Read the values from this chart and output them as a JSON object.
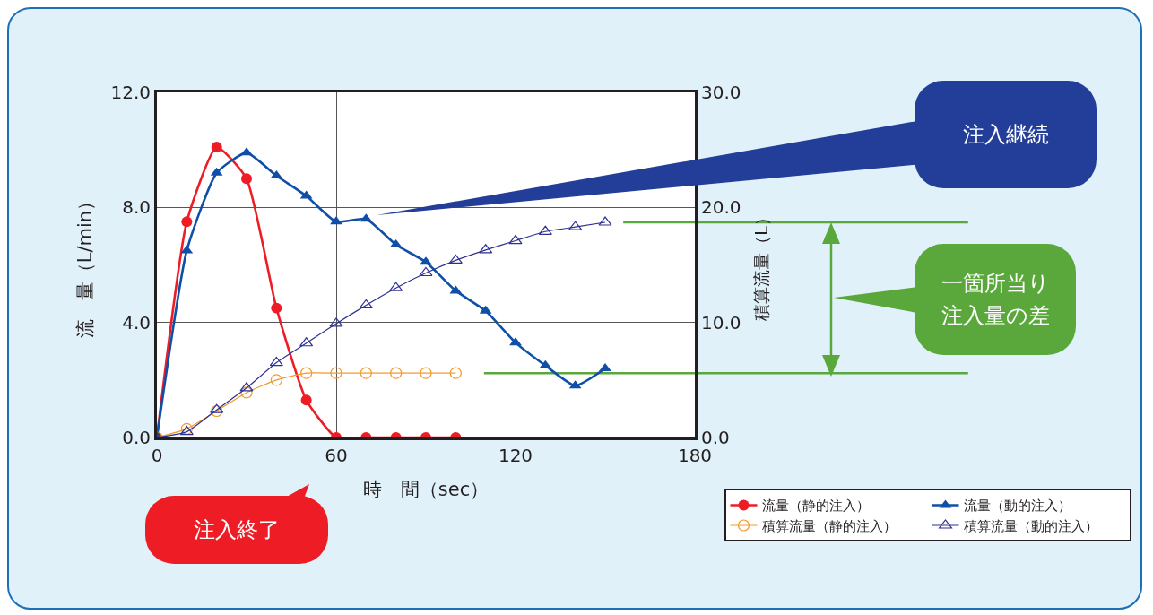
{
  "chart_data": {
    "type": "line",
    "xlabel": "時　間（sec）",
    "ylabel": "流　量（L/min）",
    "y2label": "積算流量（L）",
    "xlim": [
      0,
      180
    ],
    "xticks": [
      0,
      60,
      120,
      180
    ],
    "ylim": [
      0,
      12
    ],
    "yticks": [
      {
        "value": 0,
        "label": "0.0"
      },
      {
        "value": 4,
        "label": "4.0"
      },
      {
        "value": 8,
        "label": "8.0"
      },
      {
        "value": 12,
        "label": "12.0"
      }
    ],
    "y2lim": [
      0,
      30
    ],
    "y2ticks": [
      {
        "value": 0,
        "label": "0.0"
      },
      {
        "value": 10,
        "label": "10.0"
      },
      {
        "value": 20,
        "label": "20.0"
      },
      {
        "value": 30,
        "label": "30.0"
      }
    ],
    "grid": true,
    "legend": "bottom right",
    "line_style": "solid",
    "series": [
      {
        "name": "流量（静的注入）",
        "color": "#ee1c25",
        "marker": "circle",
        "x": [
          0,
          10,
          20,
          30,
          40,
          50,
          60,
          70,
          80,
          90,
          100
        ],
        "values": [
          0,
          7.5,
          10.1,
          9.0,
          4.5,
          1.3,
          0,
          0,
          0,
          0,
          0
        ]
      },
      {
        "name": "流量（動的注入）",
        "color": "#0f4fa8",
        "marker": "triangle",
        "x": [
          0,
          10,
          20,
          30,
          40,
          50,
          60,
          70,
          80,
          90,
          100,
          110,
          120,
          130,
          140,
          150
        ],
        "values": [
          0,
          6.5,
          9.2,
          9.9,
          9.1,
          8.4,
          7.5,
          7.6,
          6.7,
          6.1,
          5.1,
          4.4,
          3.3,
          2.5,
          1.8,
          2.4
        ]
      },
      {
        "name": "積算流量（静的注入）",
        "color": "#f39a2c",
        "marker": "circle",
        "axis": "y2",
        "x": [
          0,
          10,
          20,
          30,
          40,
          50,
          60,
          70,
          80,
          90,
          100
        ],
        "values": [
          0,
          0.75,
          2.3,
          3.9,
          5.0,
          5.6,
          5.6,
          5.6,
          5.6,
          5.6,
          5.6
        ]
      },
      {
        "name": "積算流量（動的注入）",
        "color": "#2e3192",
        "marker": "triangle",
        "axis": "y2",
        "x": [
          0,
          10,
          20,
          30,
          40,
          50,
          60,
          70,
          80,
          90,
          100,
          110,
          120,
          130,
          140,
          150
        ],
        "values": [
          0,
          0.5,
          2.4,
          4.3,
          6.5,
          8.2,
          9.9,
          11.5,
          13.0,
          14.3,
          15.4,
          16.3,
          17.1,
          17.9,
          18.3,
          18.7
        ]
      }
    ],
    "ref_lines": [
      {
        "axis": "y2",
        "value": 18.7,
        "color": "#5aa83c"
      },
      {
        "axis": "y2",
        "value": 5.6,
        "color": "#5aa83c"
      }
    ],
    "annotations": [
      "注入継続",
      "注入終了",
      "一箇所当り注入量の差"
    ]
  }
}
